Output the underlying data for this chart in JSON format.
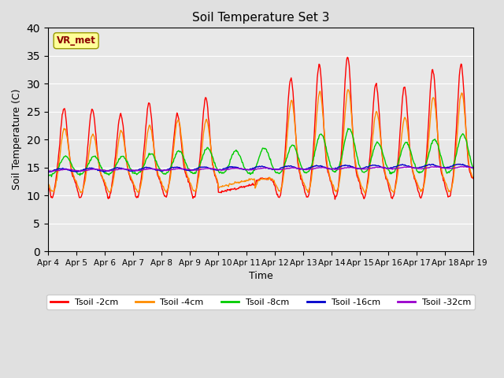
{
  "title": "Soil Temperature Set 3",
  "xlabel": "Time",
  "ylabel": "Soil Temperature (C)",
  "ylim": [
    0,
    40
  ],
  "yticks": [
    0,
    5,
    10,
    15,
    20,
    25,
    30,
    35,
    40
  ],
  "xtick_labels": [
    "Apr 4",
    "Apr 5",
    "Apr 6",
    "Apr 7",
    "Apr 8",
    "Apr 9",
    "Apr 10",
    "Apr 11",
    "Apr 12",
    "Apr 13",
    "Apr 14",
    "Apr 15",
    "Apr 16",
    "Apr 17",
    "Apr 18",
    "Apr 19"
  ],
  "annotation_text": "VR_met",
  "annotation_color": "#8B0000",
  "annotation_bg": "#FFFF99",
  "series_colors": [
    "#FF0000",
    "#FF8C00",
    "#00CC00",
    "#0000CC",
    "#9900CC"
  ],
  "series_labels": [
    "Tsoil -2cm",
    "Tsoil -4cm",
    "Tsoil -8cm",
    "Tsoil -16cm",
    "Tsoil -32cm"
  ],
  "background_color": "#E8E8E8",
  "grid_color": "#FFFFFF",
  "fig_bg": "#E0E0E0"
}
